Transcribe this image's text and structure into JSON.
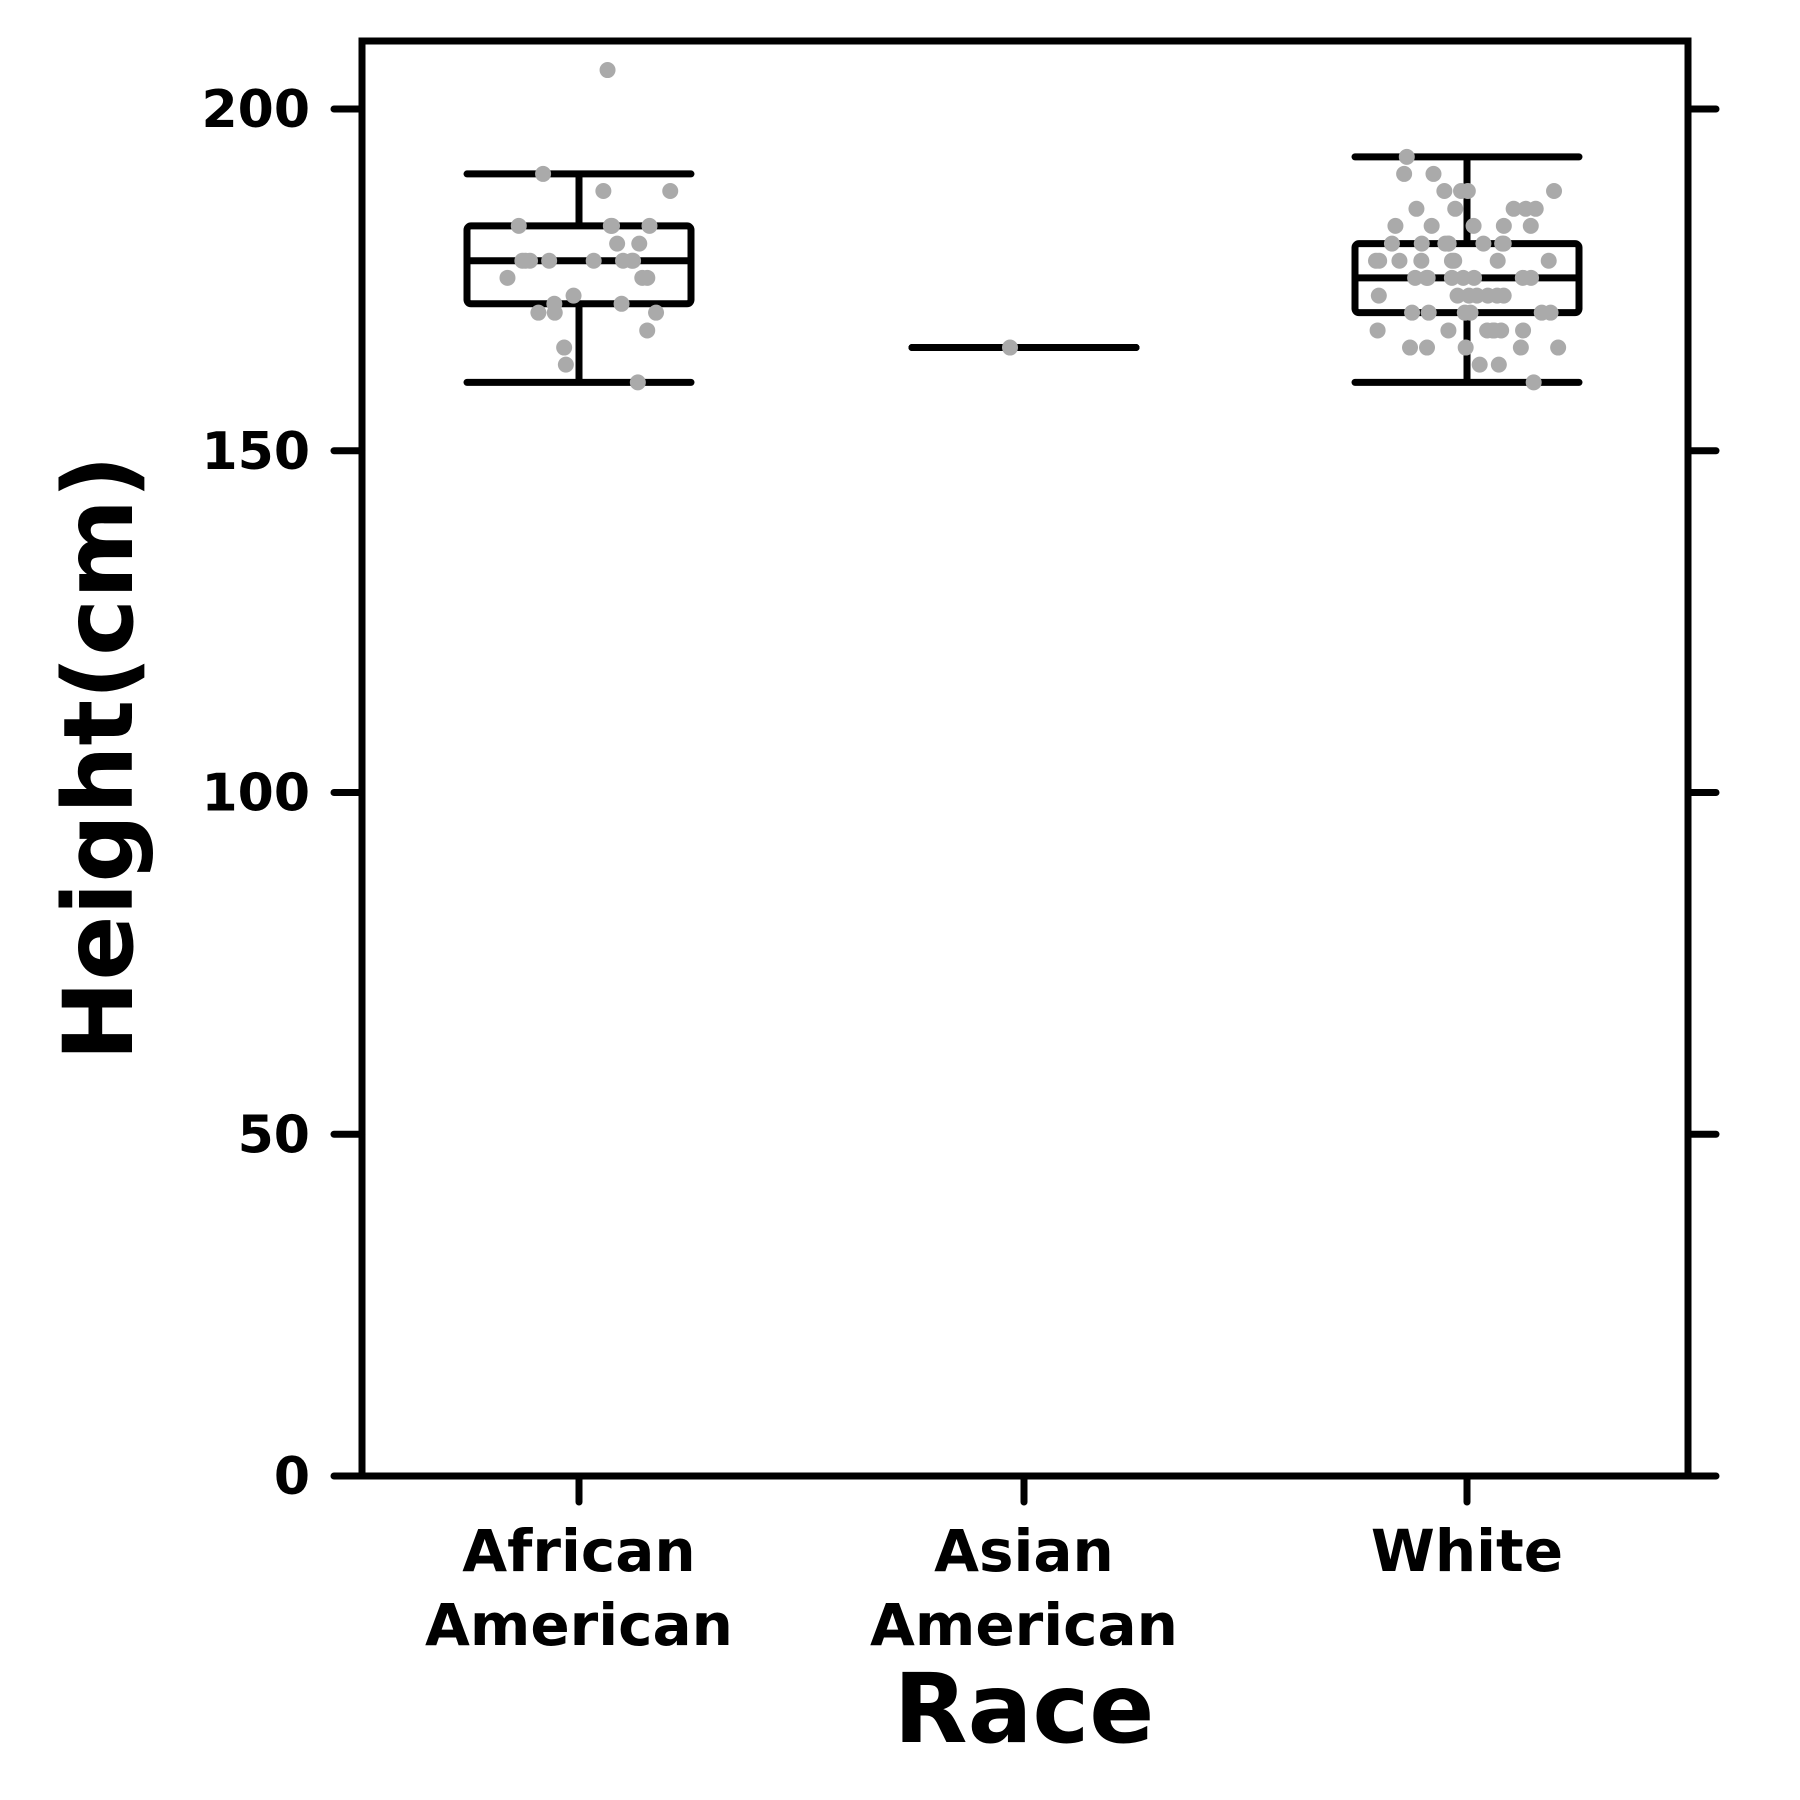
{
  "chart_data": {
    "type": "box",
    "xlabel": "Race",
    "ylabel": "Height(cm)",
    "ylim": [
      0,
      210
    ],
    "yticks": [
      0,
      50,
      100,
      150,
      200
    ],
    "grid": false,
    "categories": [
      {
        "label_lines": [
          "African",
          "American"
        ],
        "whisker_low": 160,
        "q1": 171.5,
        "median": 177.8,
        "q3": 182.9,
        "whisker_high": 190.5,
        "points": [
          205.7,
          190.5,
          188,
          188,
          182.9,
          182.9,
          182.9,
          182.9,
          180.3,
          180.3,
          177.8,
          177.8,
          177.8,
          177.8,
          177.8,
          177.8,
          177.8,
          177.8,
          175.3,
          175.3,
          175.3,
          172.7,
          171.5,
          171.5,
          170.2,
          170.2,
          170.2,
          167.6,
          165.1,
          162.6,
          160
        ]
      },
      {
        "label_lines": [
          "Asian",
          "American"
        ],
        "whisker_low": 165.1,
        "q1": 165.1,
        "median": 165.1,
        "q3": 165.1,
        "whisker_high": 165.1,
        "points": [
          165.1
        ]
      },
      {
        "label_lines": [
          "White"
        ],
        "whisker_low": 160,
        "q1": 170.2,
        "median": 175.3,
        "q3": 180.3,
        "whisker_high": 193,
        "points": [
          193,
          190.5,
          190.5,
          188,
          188,
          188,
          188,
          185.4,
          185.4,
          185.4,
          185.4,
          185.4,
          182.9,
          182.9,
          182.9,
          182.9,
          182.9,
          180.3,
          180.3,
          180.3,
          180.3,
          180.3,
          180.3,
          180.3,
          180.3,
          177.8,
          177.8,
          177.8,
          177.8,
          177.8,
          177.8,
          177.8,
          177.8,
          175.3,
          175.3,
          175.3,
          175.3,
          175.3,
          175.3,
          175.3,
          175.3,
          172.7,
          172.7,
          172.7,
          172.7,
          172.7,
          172.7,
          172.7,
          170.2,
          170.2,
          170.2,
          170.2,
          170.2,
          170.2,
          167.6,
          167.6,
          167.6,
          167.6,
          167.6,
          167.6,
          167.6,
          165.1,
          165.1,
          165.1,
          165.1,
          165.1,
          162.6,
          162.6,
          160
        ]
      }
    ],
    "colors": {
      "box": "#000000",
      "points": "#aaaaaa"
    }
  }
}
